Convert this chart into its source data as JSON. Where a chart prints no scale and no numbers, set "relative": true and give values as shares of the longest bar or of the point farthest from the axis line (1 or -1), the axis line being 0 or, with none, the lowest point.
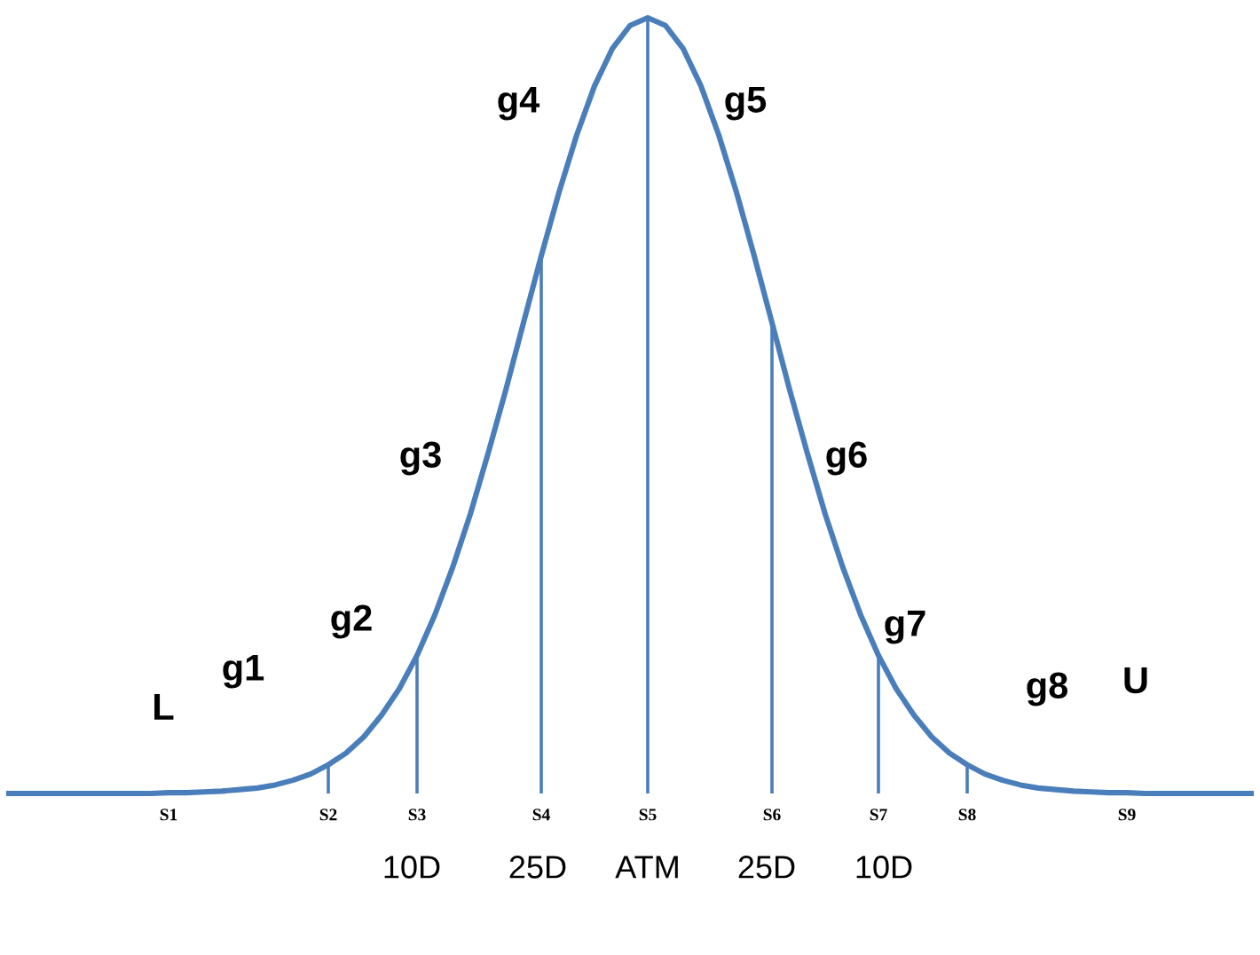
{
  "chart_data": {
    "type": "line",
    "relative": true,
    "grid": false,
    "legend": false,
    "marker": "none",
    "line_style": "solid",
    "categories": [
      null,
      null,
      null,
      null,
      null,
      null,
      null,
      null,
      null,
      "S1",
      null,
      null,
      null,
      null,
      null,
      null,
      null,
      null,
      "S2",
      null,
      null,
      null,
      null,
      "S3",
      null,
      null,
      null,
      null,
      null,
      null,
      "S4",
      null,
      null,
      null,
      null,
      null,
      "S5",
      null,
      null,
      null,
      null,
      null,
      null,
      "S6",
      null,
      null,
      null,
      null,
      null,
      "S7",
      null,
      null,
      null,
      null,
      "S8",
      null,
      null,
      null,
      null,
      null,
      null,
      null,
      null,
      "S9",
      null,
      null,
      null,
      null,
      null,
      null,
      null
    ],
    "series": [
      {
        "color": "#4a7ebb",
        "values": [
          0,
          0,
          0,
          0,
          0,
          0,
          0,
          0,
          0,
          0.001,
          0.001,
          0.002,
          0.003,
          0.005,
          0.007,
          0.011,
          0.017,
          0.025,
          0.037,
          0.052,
          0.073,
          0.101,
          0.135,
          0.178,
          0.23,
          0.291,
          0.36,
          0.438,
          0.52,
          0.607,
          0.693,
          0.775,
          0.849,
          0.912,
          0.96,
          0.99,
          1,
          0.99,
          0.96,
          0.912,
          0.849,
          0.775,
          0.693,
          0.607,
          0.52,
          0.438,
          0.36,
          0.291,
          0.23,
          0.178,
          0.135,
          0.101,
          0.073,
          0.052,
          0.037,
          0.025,
          0.017,
          0.011,
          0.007,
          0.005,
          0.003,
          0.002,
          0.001,
          0.001,
          0,
          0,
          0,
          0,
          0,
          0,
          0
        ]
      },
      {
        "type": "bar",
        "color": "#4a7ebb",
        "values": [
          null,
          null,
          null,
          null,
          null,
          null,
          null,
          null,
          null,
          null,
          null,
          null,
          null,
          null,
          null,
          null,
          null,
          null,
          0.037,
          null,
          null,
          null,
          null,
          0.178,
          null,
          null,
          null,
          null,
          null,
          null,
          0.693,
          null,
          null,
          null,
          null,
          null,
          1,
          null,
          null,
          null,
          null,
          null,
          null,
          0.607,
          null,
          null,
          null,
          null,
          null,
          0.178,
          null,
          null,
          null,
          null,
          0.037,
          null,
          null,
          null,
          null,
          null,
          null,
          null,
          null,
          null,
          null,
          null,
          null,
          null,
          null,
          null,
          null
        ]
      }
    ],
    "annotations": [
      "L",
      "g1",
      "g2",
      "g3",
      "g4",
      "g5",
      "g6",
      "g7",
      "g8",
      "U",
      "10D",
      "25D",
      "ATM",
      "25D",
      "10D"
    ]
  }
}
